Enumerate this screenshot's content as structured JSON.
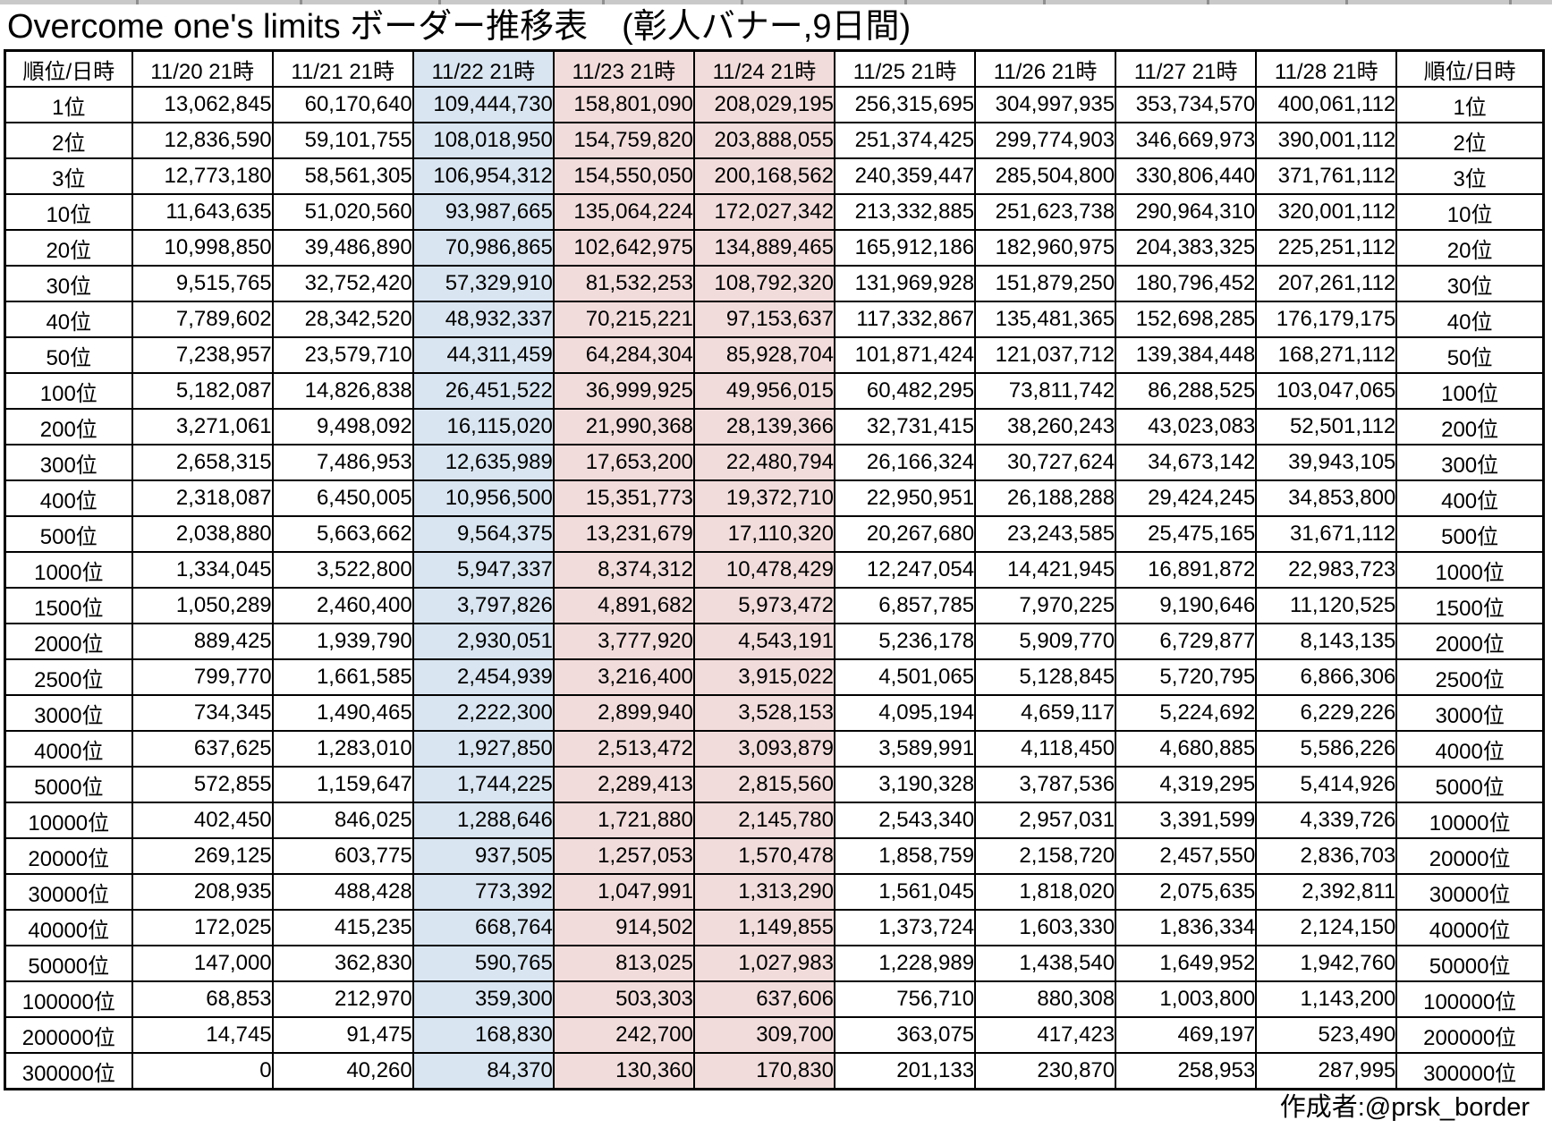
{
  "credit": "作成者:@prsk_border",
  "colors": {
    "highlight_blue": "#d9e5f1",
    "highlight_pink": "#f2dcdb",
    "grid_border": "#000000",
    "background": "#ffffff",
    "top_strip": "#c9c9c9"
  },
  "chart_data": {
    "type": "table",
    "title": "Overcome one's limits ボーダー推移表　(彰人バナー,9日間)",
    "columns": [
      "順位/日時",
      "11/20 21時",
      "11/21 21時",
      "11/22 21時",
      "11/23 21時",
      "11/24 21時",
      "11/25 21時",
      "11/26 21時",
      "11/27 21時",
      "11/28 21時",
      "順位/日時"
    ],
    "highlighted_columns": {
      "blue": [
        "11/22 21時"
      ],
      "pink": [
        "11/23 21時",
        "11/24 21時"
      ]
    },
    "rows": [
      {
        "rank": "1位",
        "values": [
          "13,062,845",
          "60,170,640",
          "109,444,730",
          "158,801,090",
          "208,029,195",
          "256,315,695",
          "304,997,935",
          "353,734,570",
          "400,061,112"
        ]
      },
      {
        "rank": "2位",
        "values": [
          "12,836,590",
          "59,101,755",
          "108,018,950",
          "154,759,820",
          "203,888,055",
          "251,374,425",
          "299,774,903",
          "346,669,973",
          "390,001,112"
        ]
      },
      {
        "rank": "3位",
        "values": [
          "12,773,180",
          "58,561,305",
          "106,954,312",
          "154,550,050",
          "200,168,562",
          "240,359,447",
          "285,504,800",
          "330,806,440",
          "371,761,112"
        ]
      },
      {
        "rank": "10位",
        "values": [
          "11,643,635",
          "51,020,560",
          "93,987,665",
          "135,064,224",
          "172,027,342",
          "213,332,885",
          "251,623,738",
          "290,964,310",
          "320,001,112"
        ]
      },
      {
        "rank": "20位",
        "values": [
          "10,998,850",
          "39,486,890",
          "70,986,865",
          "102,642,975",
          "134,889,465",
          "165,912,186",
          "182,960,975",
          "204,383,325",
          "225,251,112"
        ]
      },
      {
        "rank": "30位",
        "values": [
          "9,515,765",
          "32,752,420",
          "57,329,910",
          "81,532,253",
          "108,792,320",
          "131,969,928",
          "151,879,250",
          "180,796,452",
          "207,261,112"
        ]
      },
      {
        "rank": "40位",
        "values": [
          "7,789,602",
          "28,342,520",
          "48,932,337",
          "70,215,221",
          "97,153,637",
          "117,332,867",
          "135,481,365",
          "152,698,285",
          "176,179,175"
        ]
      },
      {
        "rank": "50位",
        "values": [
          "7,238,957",
          "23,579,710",
          "44,311,459",
          "64,284,304",
          "85,928,704",
          "101,871,424",
          "121,037,712",
          "139,384,448",
          "168,271,112"
        ]
      },
      {
        "rank": "100位",
        "values": [
          "5,182,087",
          "14,826,838",
          "26,451,522",
          "36,999,925",
          "49,956,015",
          "60,482,295",
          "73,811,742",
          "86,288,525",
          "103,047,065"
        ]
      },
      {
        "rank": "200位",
        "values": [
          "3,271,061",
          "9,498,092",
          "16,115,020",
          "21,990,368",
          "28,139,366",
          "32,731,415",
          "38,260,243",
          "43,023,083",
          "52,501,112"
        ]
      },
      {
        "rank": "300位",
        "values": [
          "2,658,315",
          "7,486,953",
          "12,635,989",
          "17,653,200",
          "22,480,794",
          "26,166,324",
          "30,727,624",
          "34,673,142",
          "39,943,105"
        ]
      },
      {
        "rank": "400位",
        "values": [
          "2,318,087",
          "6,450,005",
          "10,956,500",
          "15,351,773",
          "19,372,710",
          "22,950,951",
          "26,188,288",
          "29,424,245",
          "34,853,800"
        ]
      },
      {
        "rank": "500位",
        "values": [
          "2,038,880",
          "5,663,662",
          "9,564,375",
          "13,231,679",
          "17,110,320",
          "20,267,680",
          "23,243,585",
          "25,475,165",
          "31,671,112"
        ]
      },
      {
        "rank": "1000位",
        "values": [
          "1,334,045",
          "3,522,800",
          "5,947,337",
          "8,374,312",
          "10,478,429",
          "12,247,054",
          "14,421,945",
          "16,891,872",
          "22,983,723"
        ]
      },
      {
        "rank": "1500位",
        "values": [
          "1,050,289",
          "2,460,400",
          "3,797,826",
          "4,891,682",
          "5,973,472",
          "6,857,785",
          "7,970,225",
          "9,190,646",
          "11,120,525"
        ]
      },
      {
        "rank": "2000位",
        "values": [
          "889,425",
          "1,939,790",
          "2,930,051",
          "3,777,920",
          "4,543,191",
          "5,236,178",
          "5,909,770",
          "6,729,877",
          "8,143,135"
        ]
      },
      {
        "rank": "2500位",
        "values": [
          "799,770",
          "1,661,585",
          "2,454,939",
          "3,216,400",
          "3,915,022",
          "4,501,065",
          "5,128,845",
          "5,720,795",
          "6,866,306"
        ]
      },
      {
        "rank": "3000位",
        "values": [
          "734,345",
          "1,490,465",
          "2,222,300",
          "2,899,940",
          "3,528,153",
          "4,095,194",
          "4,659,117",
          "5,224,692",
          "6,229,226"
        ]
      },
      {
        "rank": "4000位",
        "values": [
          "637,625",
          "1,283,010",
          "1,927,850",
          "2,513,472",
          "3,093,879",
          "3,589,991",
          "4,118,450",
          "4,680,885",
          "5,586,226"
        ]
      },
      {
        "rank": "5000位",
        "values": [
          "572,855",
          "1,159,647",
          "1,744,225",
          "2,289,413",
          "2,815,560",
          "3,190,328",
          "3,787,536",
          "4,319,295",
          "5,414,926"
        ]
      },
      {
        "rank": "10000位",
        "values": [
          "402,450",
          "846,025",
          "1,288,646",
          "1,721,880",
          "2,145,780",
          "2,543,340",
          "2,957,031",
          "3,391,599",
          "4,339,726"
        ]
      },
      {
        "rank": "20000位",
        "values": [
          "269,125",
          "603,775",
          "937,505",
          "1,257,053",
          "1,570,478",
          "1,858,759",
          "2,158,720",
          "2,457,550",
          "2,836,703"
        ]
      },
      {
        "rank": "30000位",
        "values": [
          "208,935",
          "488,428",
          "773,392",
          "1,047,991",
          "1,313,290",
          "1,561,045",
          "1,818,020",
          "2,075,635",
          "2,392,811"
        ]
      },
      {
        "rank": "40000位",
        "values": [
          "172,025",
          "415,235",
          "668,764",
          "914,502",
          "1,149,855",
          "1,373,724",
          "1,603,330",
          "1,836,334",
          "2,124,150"
        ]
      },
      {
        "rank": "50000位",
        "values": [
          "147,000",
          "362,830",
          "590,765",
          "813,025",
          "1,027,983",
          "1,228,989",
          "1,438,540",
          "1,649,952",
          "1,942,760"
        ]
      },
      {
        "rank": "100000位",
        "values": [
          "68,853",
          "212,970",
          "359,300",
          "503,303",
          "637,606",
          "756,710",
          "880,308",
          "1,003,800",
          "1,143,200"
        ]
      },
      {
        "rank": "200000位",
        "values": [
          "14,745",
          "91,475",
          "168,830",
          "242,700",
          "309,700",
          "363,075",
          "417,423",
          "469,197",
          "523,490"
        ]
      },
      {
        "rank": "300000位",
        "values": [
          "0",
          "40,260",
          "84,370",
          "130,360",
          "170,830",
          "201,133",
          "230,870",
          "258,953",
          "287,995"
        ]
      }
    ]
  }
}
